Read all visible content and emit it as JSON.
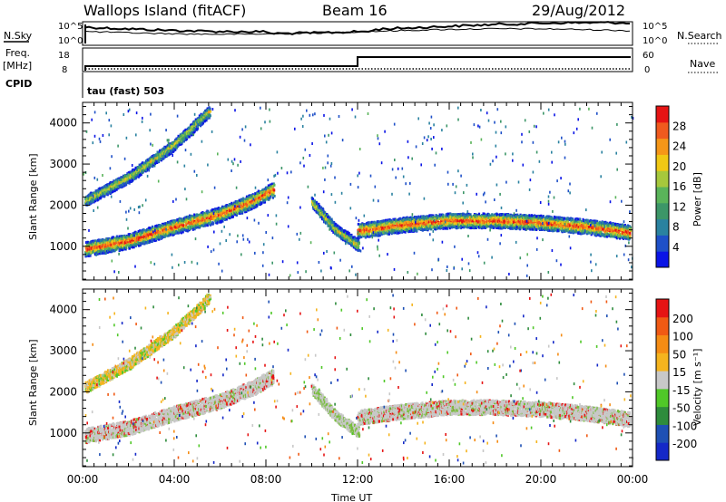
{
  "header": {
    "station": "Wallops Island (fitACF)",
    "beam": "Beam 16",
    "date": "29/Aug/2012"
  },
  "params": {
    "nsky_label": "N.Sky",
    "nsearch_label": "N.Search",
    "nsky_ticks": [
      "10^5",
      "10^0"
    ],
    "nsearch_ticks": [
      "10^5",
      "10^0"
    ],
    "freq_label_1": "Freq.",
    "freq_label_2": "[MHz]",
    "freq_ticks": [
      "18",
      "8"
    ],
    "nave_label": "Nave",
    "nave_ticks": [
      "60",
      "0"
    ],
    "cpid_label": "CPID",
    "cpid_text": "tau (fast) 503"
  },
  "chart_data": [
    {
      "type": "heatmap",
      "name": "power",
      "ylabel": "Slant Range [km]",
      "xlabel": "",
      "x_ticks": [
        "00:00",
        "04:00",
        "08:00",
        "12:00",
        "16:00",
        "20:00",
        "00:00"
      ],
      "x_range_hours": [
        0,
        24
      ],
      "y_ticks": [
        1000,
        2000,
        3000,
        4000
      ],
      "y_range_km": [
        180,
        4500
      ],
      "colorbar": {
        "label": "Power [dB]",
        "ticks": [
          "4",
          "8",
          "12",
          "16",
          "20",
          "24",
          "28"
        ],
        "range": [
          0,
          32
        ],
        "colors": [
          "#0a14e6",
          "#1e50c8",
          "#2a82a0",
          "#3c9668",
          "#5ab45a",
          "#a6c83c",
          "#f0c814",
          "#f59618",
          "#f05a1e",
          "#e61414"
        ]
      },
      "features": [
        {
          "desc": "main band",
          "points": [
            [
              0,
              950
            ],
            [
              2,
              1150
            ],
            [
              4,
              1500
            ],
            [
              6,
              1800
            ],
            [
              7.5,
              2150
            ],
            [
              8.3,
              2400
            ]
          ]
        },
        {
          "desc": "post-midnight band",
          "points": [
            [
              12,
              1400
            ],
            [
              14,
              1550
            ],
            [
              16,
              1650
            ],
            [
              18,
              1650
            ],
            [
              20,
              1600
            ],
            [
              22,
              1500
            ],
            [
              24,
              1350
            ]
          ]
        },
        {
          "desc": "upper band",
          "points": [
            [
              0,
              2100
            ],
            [
              2,
              2700
            ],
            [
              4,
              3500
            ],
            [
              5.5,
              4300
            ]
          ]
        },
        {
          "desc": "descending trace",
          "points": [
            [
              10,
              2100
            ],
            [
              11,
              1450
            ],
            [
              12,
              1050
            ]
          ]
        }
      ]
    },
    {
      "type": "heatmap",
      "name": "velocity",
      "ylabel": "Slant Range [km]",
      "xlabel": "Time UT",
      "x_ticks": [
        "00:00",
        "04:00",
        "08:00",
        "12:00",
        "16:00",
        "20:00",
        "00:00"
      ],
      "x_range_hours": [
        0,
        24
      ],
      "y_ticks": [
        1000,
        2000,
        3000,
        4000
      ],
      "y_range_km": [
        180,
        4500
      ],
      "colorbar": {
        "label": "Velocity [m s⁻¹]",
        "ticks": [
          "200",
          "100",
          "50",
          "15",
          "-15",
          "-50",
          "-100",
          "-200"
        ],
        "colors": [
          "#1428c8",
          "#1e50b4",
          "#2e8c3c",
          "#50c828",
          "#c8c8c8",
          "#f5b41e",
          "#f58c14",
          "#f05a14",
          "#e61414"
        ]
      }
    }
  ]
}
